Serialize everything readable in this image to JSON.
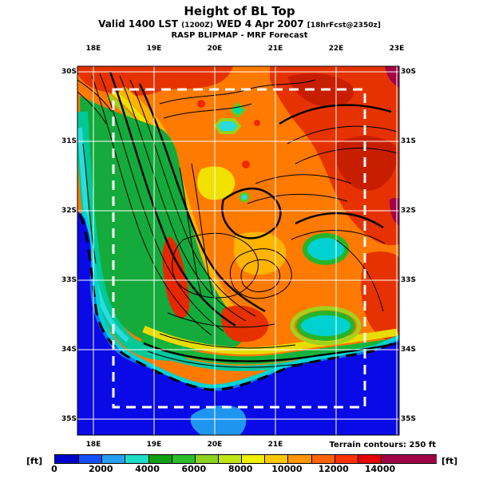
{
  "header": {
    "title": "Height of BL Top",
    "valid_line": {
      "prefix": "Valid 1400 LST",
      "zulu": "(1200Z)",
      "date": "WED 4 Apr 2007",
      "fcst": "[18hrFcst@2350z]"
    },
    "model_line": "RASP BLIPMAP - MRF Forecast"
  },
  "map": {
    "x_axis": {
      "top_labels": [
        "18E",
        "19E",
        "20E",
        "21E",
        "22E",
        "23E"
      ],
      "bottom_labels": [
        "18E",
        "19E",
        "20E",
        "21E"
      ]
    },
    "y_axis": {
      "left_labels": [
        "30S",
        "31S",
        "32S",
        "33S",
        "34S",
        "35S"
      ],
      "right_labels": [
        "30S",
        "31S",
        "32S",
        "33S",
        "34S",
        "35S"
      ]
    },
    "grid_color": "#ffffff",
    "domain_box_color": "#ffffff",
    "terrain_contour_color": "#000000"
  },
  "footer": {
    "terrain_note": "Terrain contours: 250 ft"
  },
  "colorbar": {
    "unit_left": "[ft]",
    "unit_right": "[ft]",
    "tick_labels": [
      "0",
      "2000",
      "4000",
      "6000",
      "8000",
      "10000",
      "12000",
      "14000"
    ],
    "segment_colors": [
      "#0000C8",
      "#1450FA",
      "#28A0F0",
      "#1EDCC8",
      "#0FA00F",
      "#2DBE2D",
      "#8CD21E",
      "#BEE614",
      "#F0F000",
      "#FFC800",
      "#FF9600",
      "#FF6400",
      "#FF3200",
      "#E60000"
    ],
    "overflow_color": "#A00046"
  },
  "chart_data": {
    "type": "heatmap",
    "title": "Height of BL Top",
    "units": "ft",
    "scale_min": 0,
    "scale_max": 14000,
    "scale_step": 1000,
    "x_range": [
      "18E",
      "23E"
    ],
    "y_range": [
      "30S",
      "35S"
    ],
    "legend_position": "bottom",
    "grid": true,
    "field_summary": "Boundary-layer top height over the southwestern Cape: ocean areas lowest (blue, 0-2000 ft), west-coast and south-coast strip green/cyan (3000-6000 ft), interior plateau orange to red (10000-14000 ft) with small dark-red (>14000 ft) maxima at the northeast corner and east edge; black terrain contours at 250 ft intervals; white dashed inner model-domain box."
  }
}
